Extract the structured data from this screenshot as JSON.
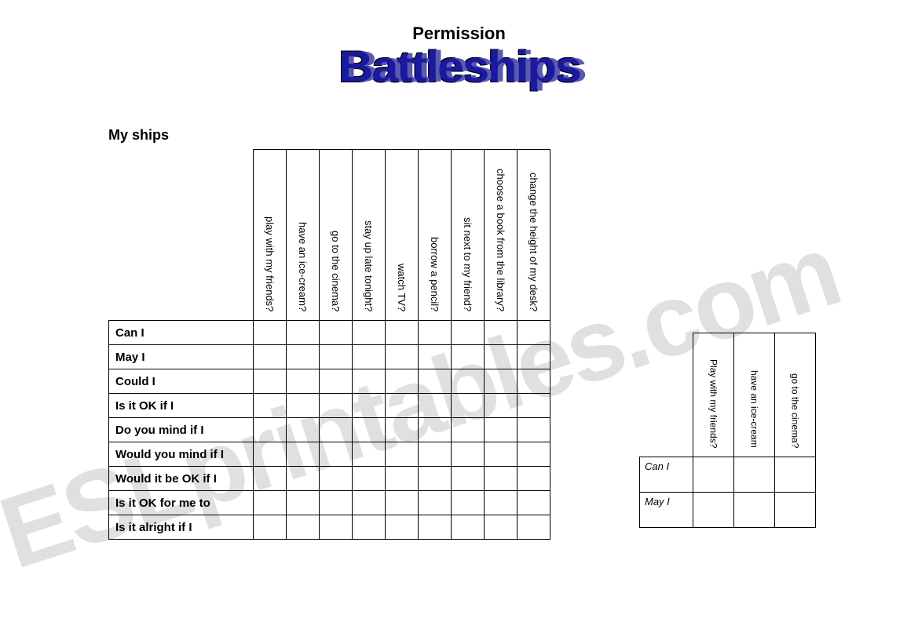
{
  "title": {
    "supertitle": "Permission",
    "wordart": "Battleships"
  },
  "section_label": "My ships",
  "main_grid": {
    "columns": [
      "play with my friends?",
      "have an ice-cream?",
      "go to the cinema?",
      "stay up late tonight?",
      "watch TV?",
      "borrow a pencil?",
      "sit next to my friend?",
      "choose a book from the library?",
      "change the height of my desk?"
    ],
    "rows": [
      "Can I",
      "May I",
      "Could I",
      "Is it OK if I",
      "Do you mind if I",
      "Would you mind if I",
      "Would it be OK if I",
      "Is it OK for me to",
      "Is it alright if I"
    ]
  },
  "mini_grid": {
    "columns": [
      "Play with my friends?",
      "have an ice-cream",
      "go to the cinema?"
    ],
    "rows": [
      "Can I",
      "May I"
    ]
  },
  "watermark": "ESLprintables.com",
  "colors": {
    "wordart_fill": "#1a1aa0",
    "wordart_shadow": "#5a5ab0",
    "border": "#000000",
    "background": "#ffffff",
    "watermark": "rgba(0,0,0,0.12)"
  }
}
